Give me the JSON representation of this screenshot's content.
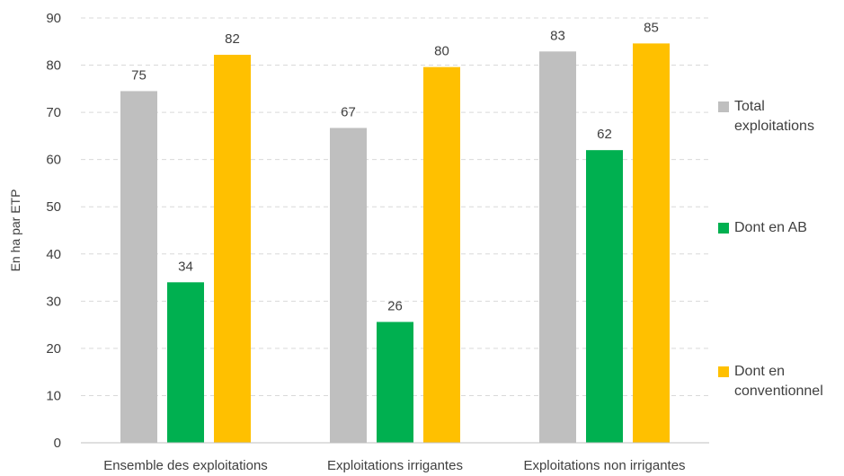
{
  "chart_data": {
    "type": "bar",
    "title": "",
    "xlabel": "",
    "ylabel": "En ha par ETP",
    "ylim": [
      0,
      90
    ],
    "yticks": [
      0,
      10,
      20,
      30,
      40,
      50,
      60,
      70,
      80,
      90
    ],
    "grid": true,
    "legend_position": "right",
    "categories": [
      "Ensemble des exploitations",
      "Exploitations irrigantes",
      "Exploitations non irrigantes"
    ],
    "series": [
      {
        "name": "Total exploitations",
        "color": "#bfbfbf",
        "values": [
          74.5,
          66.7,
          82.9
        ],
        "labels": [
          "75",
          "67",
          "83"
        ]
      },
      {
        "name": "Dont en AB",
        "color": "#00b050",
        "values": [
          34.0,
          25.6,
          62.0
        ],
        "labels": [
          "34",
          "26",
          "62"
        ]
      },
      {
        "name": "Dont en conventionnel",
        "color": "#ffc000",
        "values": [
          82.2,
          79.6,
          84.6
        ],
        "labels": [
          "82",
          "80",
          "85"
        ]
      }
    ]
  }
}
